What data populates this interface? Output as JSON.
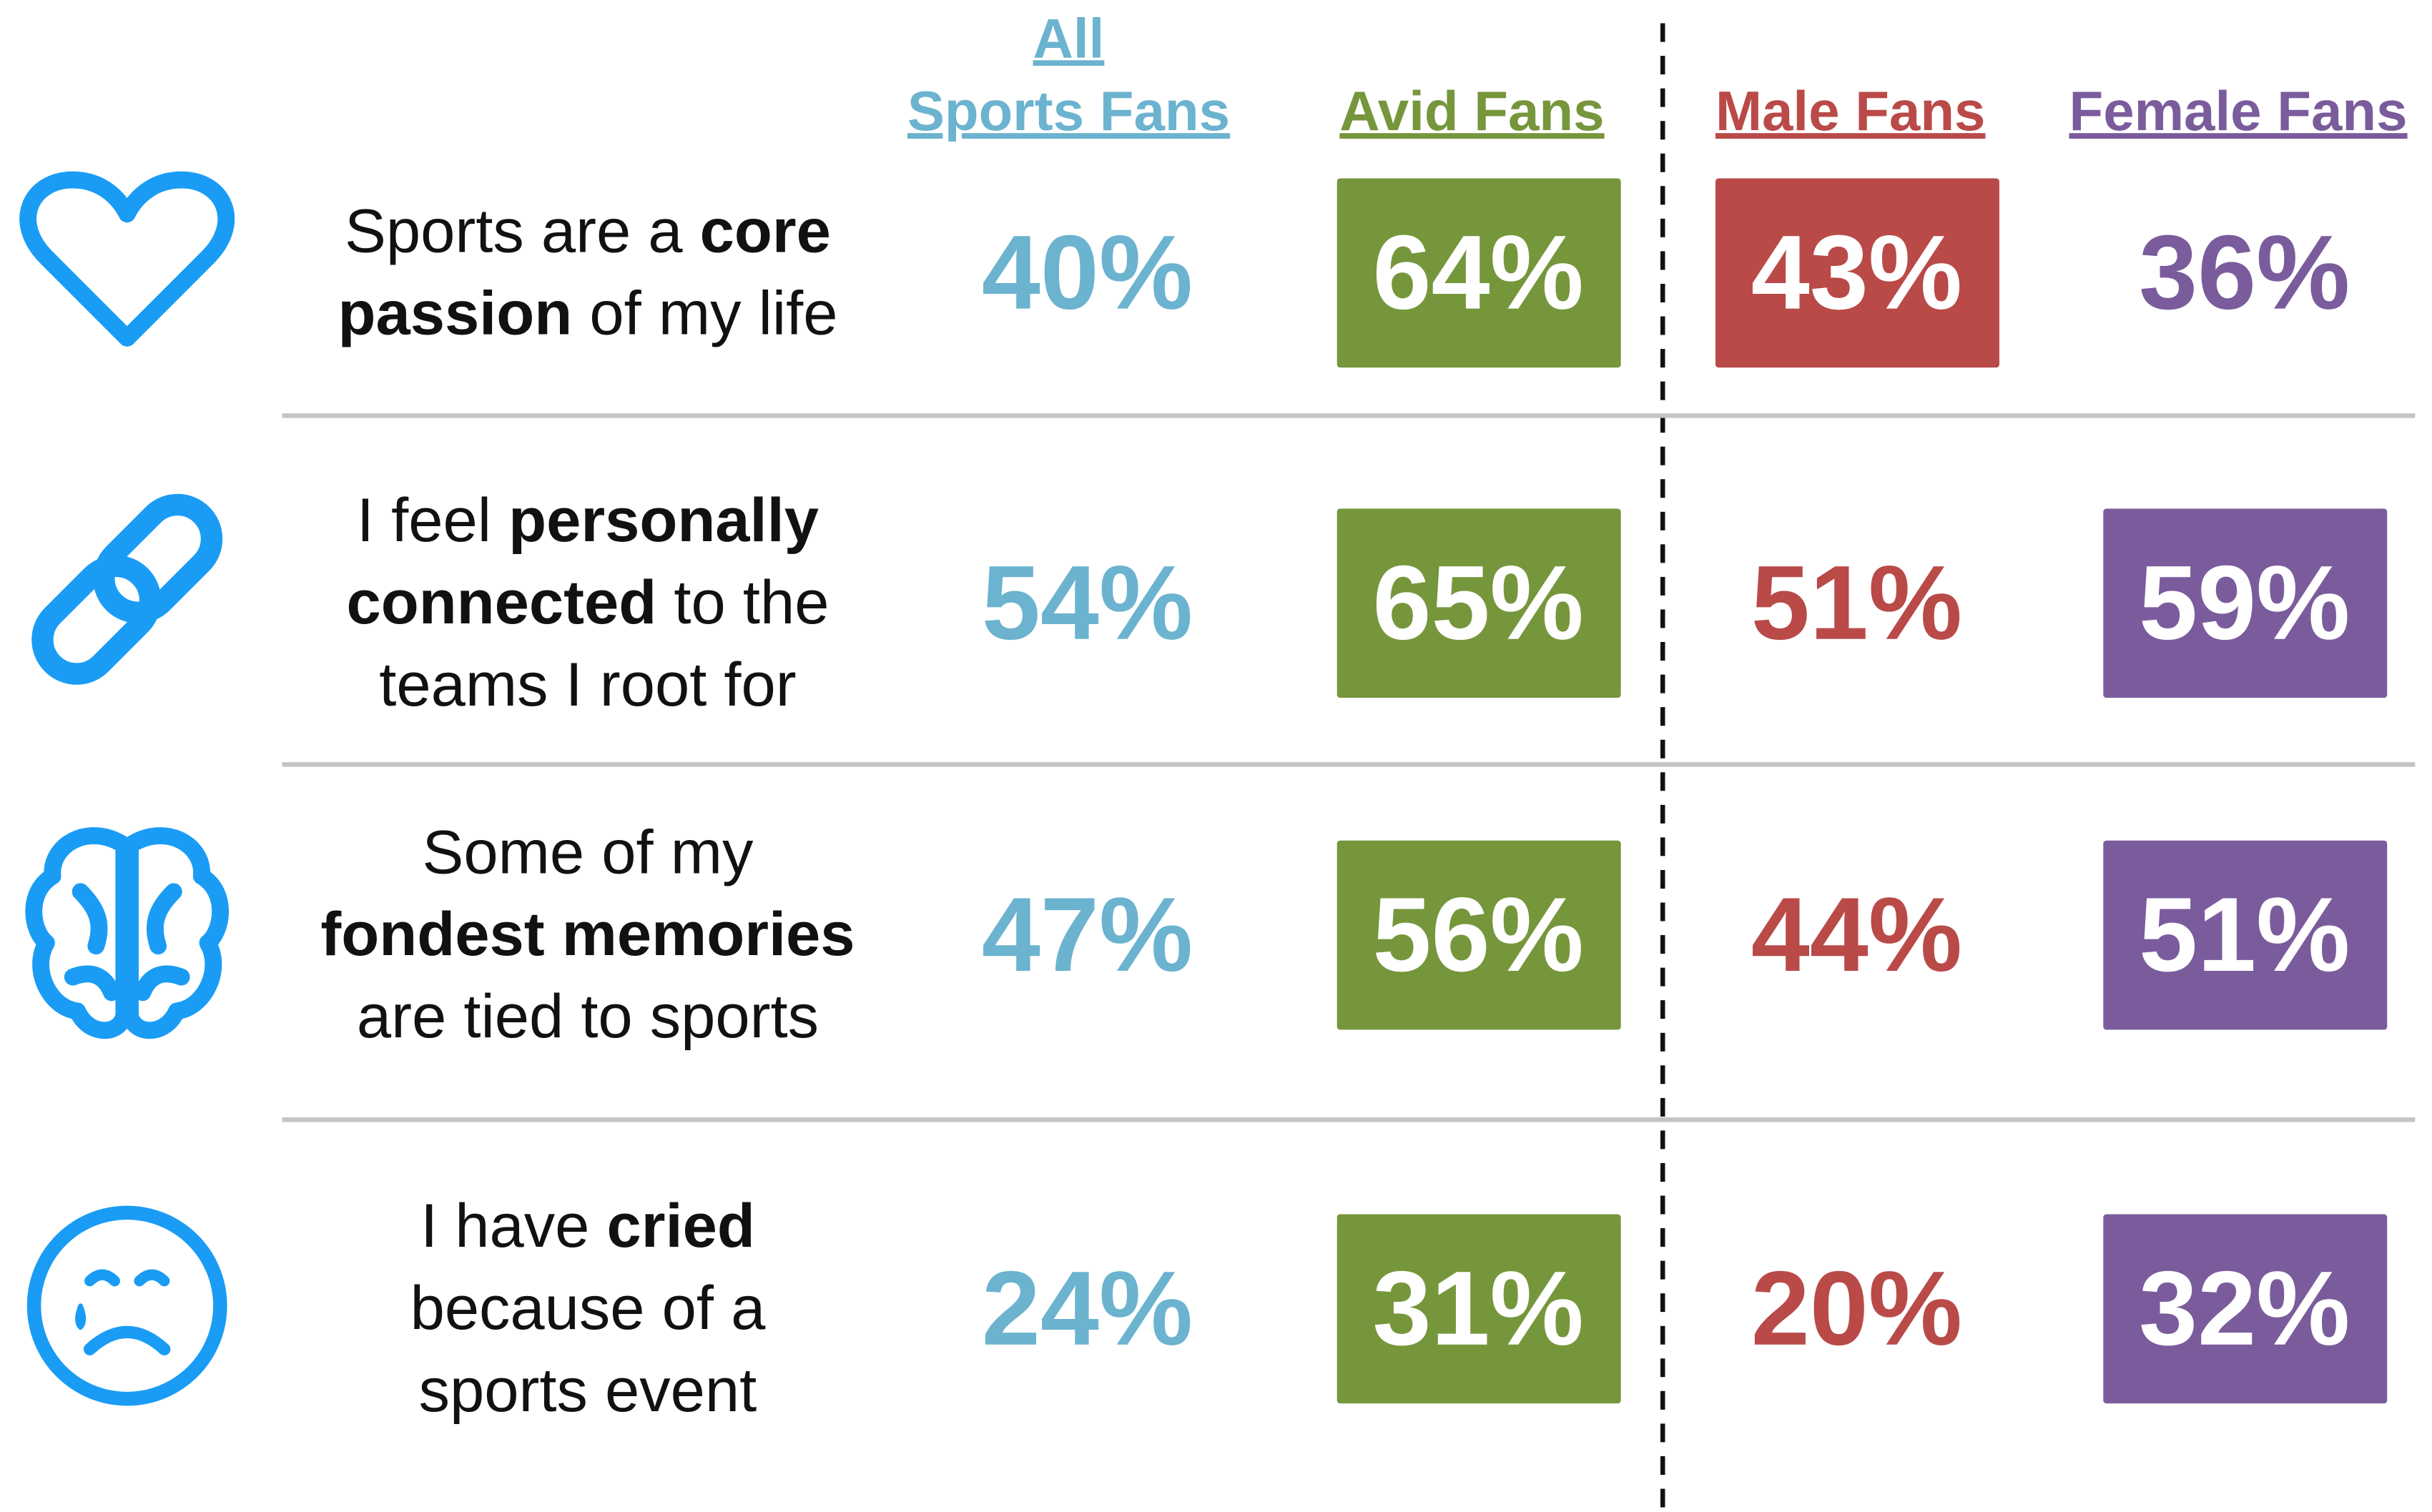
{
  "columns": [
    {
      "lines": [
        "All",
        "Sports Fans"
      ],
      "color": "#6bb3cf"
    },
    {
      "lines": [
        "Avid Fans"
      ],
      "color": "#76963c"
    },
    {
      "lines": [
        "Male Fans"
      ],
      "color": "#b94a48"
    },
    {
      "lines": [
        "Female Fans"
      ],
      "color": "#7a5c9c"
    }
  ],
  "rows": [
    {
      "statement": [
        [
          {
            "text": "Sports are a "
          },
          {
            "text": "core",
            "bold": true
          }
        ],
        [
          {
            "text": "passion",
            "bold": true
          },
          {
            "text": " of my life"
          }
        ]
      ],
      "cells": [
        {
          "text": "40%"
        },
        {
          "text": "64%",
          "boxed": true
        },
        {
          "text": "43%",
          "boxed": true
        },
        {
          "text": "36%"
        }
      ]
    },
    {
      "statement": [
        [
          {
            "text": "I feel "
          },
          {
            "text": "personally",
            "bold": true
          }
        ],
        [
          {
            "text": "connected",
            "bold": true
          },
          {
            "text": " to the"
          }
        ],
        [
          {
            "text": "teams I root for"
          }
        ]
      ],
      "cells": [
        {
          "text": "54%"
        },
        {
          "text": "65%",
          "boxed": true
        },
        {
          "text": "51%"
        },
        {
          "text": "59%",
          "boxed": true
        }
      ]
    },
    {
      "statement": [
        [
          {
            "text": "Some of my"
          }
        ],
        [
          {
            "text": "fondest memories",
            "bold": true
          }
        ],
        [
          {
            "text": "are tied to sports"
          }
        ]
      ],
      "cells": [
        {
          "text": "47%"
        },
        {
          "text": "56%",
          "boxed": true
        },
        {
          "text": "44%"
        },
        {
          "text": "51%",
          "boxed": true
        }
      ]
    },
    {
      "statement": [
        [
          {
            "text": "I have "
          },
          {
            "text": "cried",
            "bold": true
          }
        ],
        [
          {
            "text": "because of a"
          }
        ],
        [
          {
            "text": "sports event"
          }
        ]
      ],
      "cells": [
        {
          "text": "24%"
        },
        {
          "text": "31%",
          "boxed": true
        },
        {
          "text": "20%"
        },
        {
          "text": "32%",
          "boxed": true
        }
      ]
    }
  ]
}
